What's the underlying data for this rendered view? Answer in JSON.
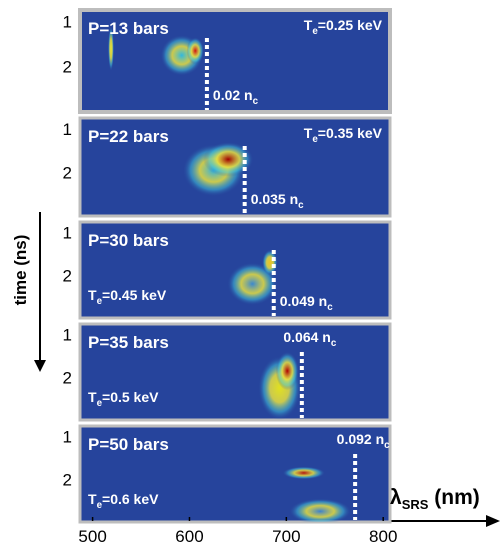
{
  "chart_data": [
    {
      "type": "spectrogram",
      "xlim": [
        487,
        807
      ],
      "ylim": [
        0.75,
        3.0
      ],
      "yticks": [
        1,
        2
      ],
      "background": "#26449c",
      "label": "P=13 bars",
      "temperature": [
        "T",
        "e",
        "=0.25 keV"
      ],
      "temperature_position": "top-right",
      "cutoff": 618,
      "density": [
        "0.02 n",
        "c"
      ],
      "density_position": "bottom",
      "hotspots": [
        {
          "x": 519,
          "y": 1.6,
          "rx": 3,
          "ry": 0.5,
          "color": "#e8e830"
        },
        {
          "x": 592,
          "y": 1.75,
          "rx": 22,
          "ry": 0.45,
          "color": "#30b8e0"
        },
        {
          "x": 606,
          "y": 1.65,
          "rx": 9,
          "ry": 0.3,
          "color": "#d01010"
        }
      ]
    },
    {
      "type": "spectrogram",
      "xlim": [
        487,
        807
      ],
      "ylim": [
        0.75,
        3.0
      ],
      "yticks": [
        1,
        2
      ],
      "background": "#26449c",
      "label": "P=22 bars",
      "temperature": [
        "T",
        "e",
        "=0.35 keV"
      ],
      "temperature_position": "top-right",
      "cutoff": 657,
      "density": [
        "0.035 n",
        "c"
      ],
      "density_position": "bottom",
      "hotspots": [
        {
          "x": 625,
          "y": 1.95,
          "rx": 32,
          "ry": 0.6,
          "color": "#30b0e0"
        },
        {
          "x": 640,
          "y": 1.7,
          "rx": 26,
          "ry": 0.4,
          "color": "#a00000"
        }
      ]
    },
    {
      "type": "spectrogram",
      "xlim": [
        487,
        807
      ],
      "ylim": [
        0.75,
        3.0
      ],
      "yticks": [
        1,
        2
      ],
      "background": "#26449c",
      "label": "P=30 bars",
      "temperature": [
        "T",
        "e",
        "=0.45 keV"
      ],
      "temperature_position": "bottom-left",
      "cutoff": 687,
      "density": [
        "0.049 n",
        "c"
      ],
      "density_position": "bottom",
      "hotspots": [
        {
          "x": 665,
          "y": 2.2,
          "rx": 26,
          "ry": 0.5,
          "color": "#3a88d0"
        },
        {
          "x": 683,
          "y": 1.7,
          "rx": 8,
          "ry": 0.3,
          "color": "#f0c020"
        }
      ]
    },
    {
      "type": "spectrogram",
      "xlim": [
        487,
        807
      ],
      "ylim": [
        0.75,
        3.0
      ],
      "yticks": [
        1,
        2
      ],
      "background": "#26449c",
      "label": "P=35 bars",
      "temperature": [
        "T",
        "e",
        "=0.5 keV"
      ],
      "temperature_position": "bottom-left",
      "cutoff": 716,
      "density": [
        "0.064 n",
        "c"
      ],
      "density_position": "top",
      "hotspots": [
        {
          "x": 693,
          "y": 2.25,
          "rx": 22,
          "ry": 0.75,
          "color": "#e0e020"
        },
        {
          "x": 701,
          "y": 1.85,
          "rx": 12,
          "ry": 0.45,
          "color": "#b00000"
        }
      ]
    },
    {
      "type": "spectrogram",
      "xlim": [
        487,
        807
      ],
      "ylim": [
        0.75,
        3.0
      ],
      "yticks": [
        1,
        2
      ],
      "background": "#26449c",
      "label": "P=50 bars",
      "temperature": [
        "T",
        "e",
        "=0.6 keV"
      ],
      "temperature_position": "bottom-left",
      "cutoff": 771,
      "density": [
        "0.092 n",
        "c"
      ],
      "density_position": "top",
      "hotspots": [
        {
          "x": 735,
          "y": 2.75,
          "rx": 32,
          "ry": 0.3,
          "color": "#3a80d0"
        },
        {
          "x": 718,
          "y": 1.85,
          "rx": 22,
          "ry": 0.15,
          "color": "#b01010"
        }
      ],
      "xticks": [
        500,
        600,
        700,
        800
      ],
      "xlabel": [
        "λ",
        "SRS",
        " (nm)"
      ],
      "ylabel": "time (ns)"
    }
  ]
}
